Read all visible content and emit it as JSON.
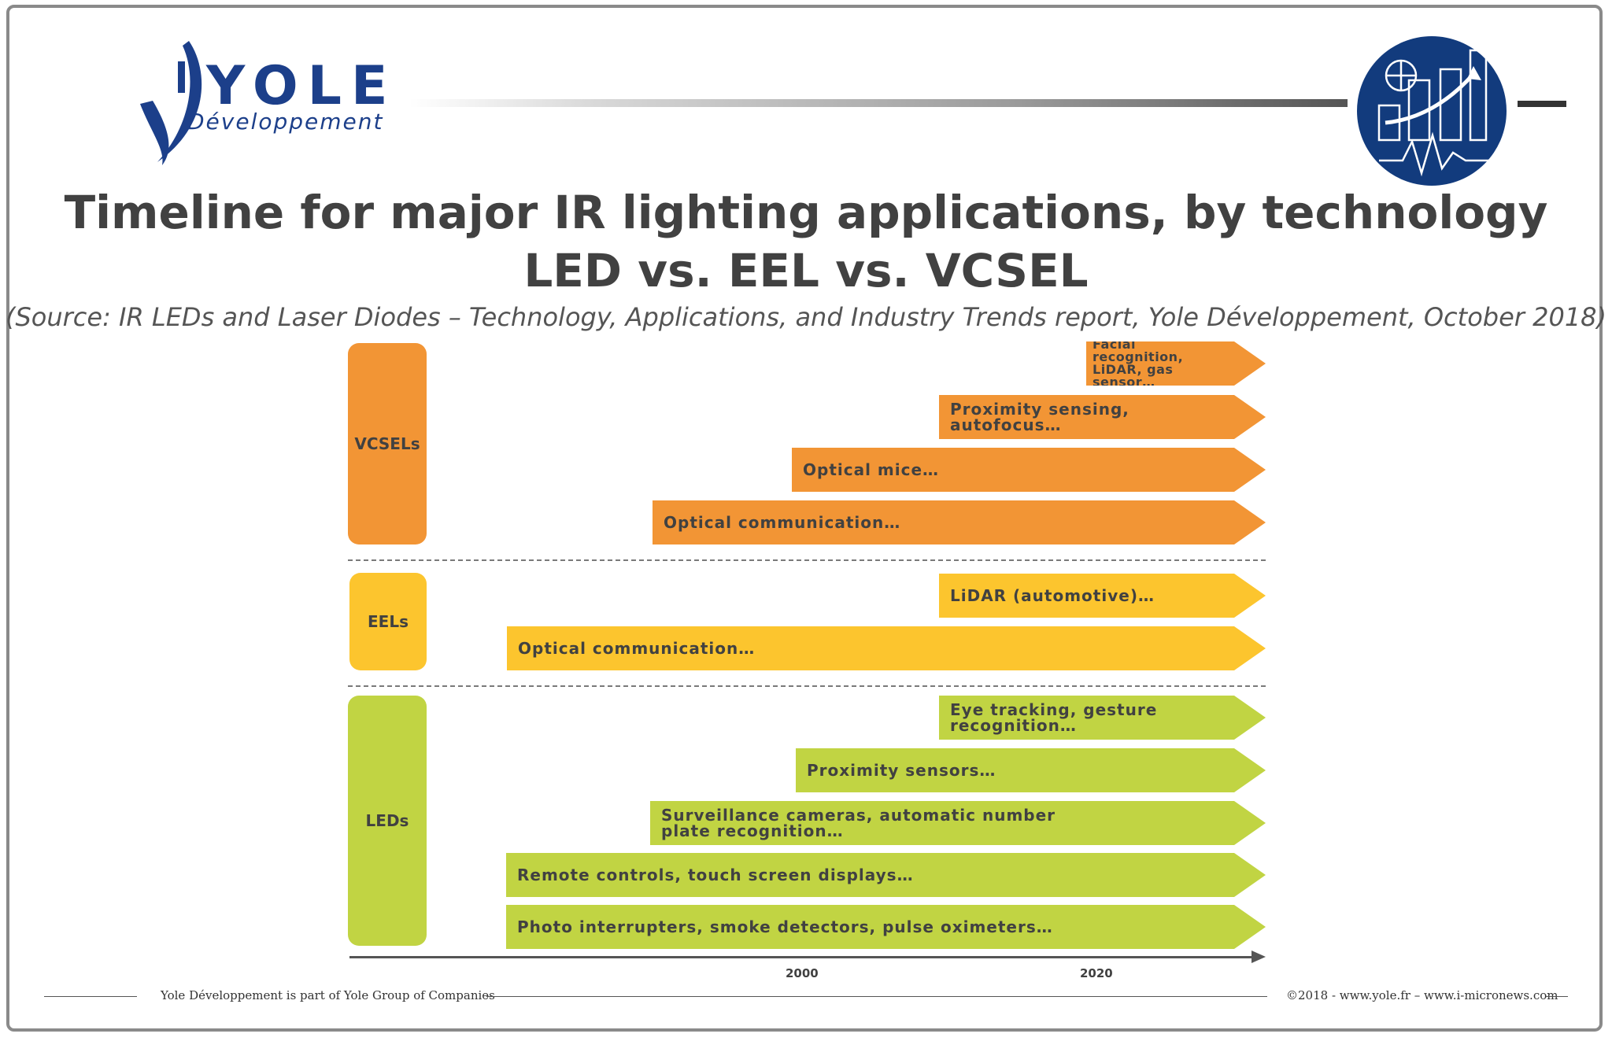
{
  "logo": {
    "word": "YOLE",
    "sub": "Développement"
  },
  "colors": {
    "vcsel": "#f29535",
    "eel": "#fcc52e",
    "led": "#c1d443",
    "brand": "#1c3f8a",
    "text": "#414141"
  },
  "badge": {
    "icon": "chart-analytics-icon"
  },
  "title": {
    "line1": "Timeline for major IR lighting applications, by technology",
    "line2": "LED vs. EEL vs. VCSEL",
    "source": "(Source: IR LEDs and Laser Diodes – Technology, Applications, and Industry Trends report, Yole Développement, October 2018)"
  },
  "groups": {
    "vcsel": {
      "label": "VCSELs",
      "items": [
        {
          "text": "Facial recognition,\nLiDAR, gas sensor…"
        },
        {
          "text": "Proximity sensing,\nautofocus…"
        },
        {
          "text": "Optical mice…"
        },
        {
          "text": "Optical communication…"
        }
      ]
    },
    "eel": {
      "label": "EELs",
      "items": [
        {
          "text": "LiDAR (automotive)…"
        },
        {
          "text": "Optical communication…"
        }
      ]
    },
    "led": {
      "label": "LEDs",
      "items": [
        {
          "text": "Eye tracking, gesture\nrecognition…"
        },
        {
          "text": "Proximity sensors…"
        },
        {
          "text": "Surveillance cameras, automatic number\nplate recognition…"
        },
        {
          "text": "Remote controls, touch screen displays…"
        },
        {
          "text": "Photo interrupters, smoke detectors, pulse oximeters…"
        }
      ]
    }
  },
  "axis": {
    "ticks": [
      "2000",
      "2020"
    ]
  },
  "footer": {
    "left": "Yole Développement is part of Yole Group of Companies",
    "right": "©2018 - www.yole.fr – www.i-micronews.com"
  }
}
